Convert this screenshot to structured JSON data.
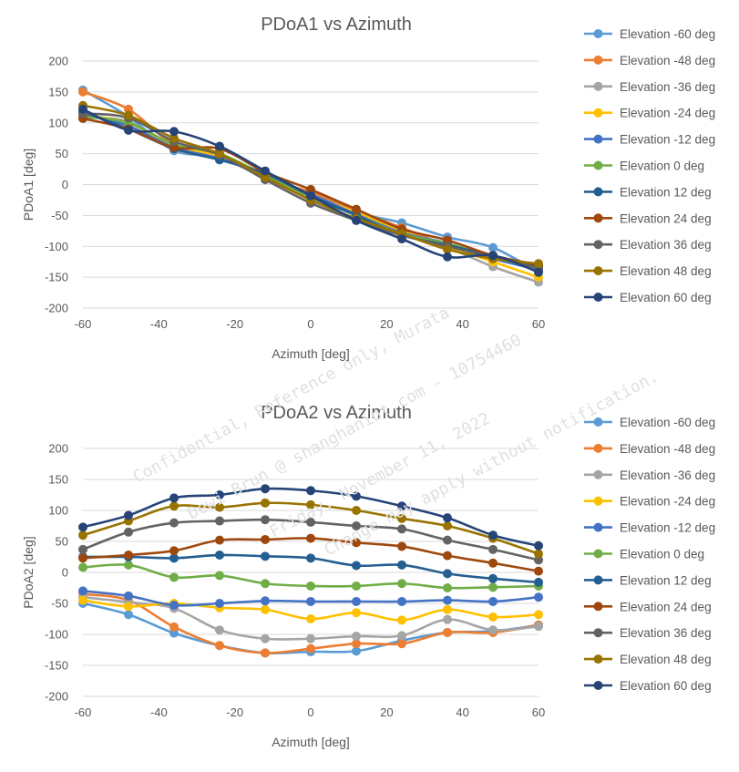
{
  "chart_data": [
    {
      "type": "line",
      "title": "PDoA1 vs Azimuth",
      "xlabel": "Azimuth [deg]",
      "ylabel": "PDoA1 [deg]",
      "xlim": [
        -60,
        60
      ],
      "ylim": [
        -200,
        200
      ],
      "xticks": [
        -60,
        -40,
        -20,
        0,
        20,
        40,
        60
      ],
      "yticks": [
        200,
        150,
        100,
        50,
        0,
        -50,
        -100,
        -150,
        -200
      ],
      "grid": true,
      "legend": "right",
      "x": [
        -60,
        -48,
        -36,
        -24,
        -12,
        0,
        12,
        24,
        36,
        48,
        60
      ],
      "series": [
        {
          "name": "Elevation -60 deg",
          "color": "#5b9bd5",
          "values": [
            153,
            110,
            55,
            45,
            12,
            -15,
            -45,
            -62,
            -85,
            -102,
            -142
          ]
        },
        {
          "name": "Elevation -48 deg",
          "color": "#ed7d31",
          "values": [
            150,
            122,
            65,
            48,
            10,
            -12,
            -42,
            -70,
            -98,
            -115,
            -140
          ]
        },
        {
          "name": "Elevation -36 deg",
          "color": "#a5a5a5",
          "values": [
            108,
            102,
            57,
            44,
            10,
            -22,
            -48,
            -80,
            -102,
            -133,
            -158
          ]
        },
        {
          "name": "Elevation -24 deg",
          "color": "#ffc000",
          "values": [
            112,
            100,
            62,
            46,
            12,
            -18,
            -45,
            -75,
            -100,
            -125,
            -150
          ]
        },
        {
          "name": "Elevation -12 deg",
          "color": "#4472c4",
          "values": [
            115,
            95,
            60,
            42,
            14,
            -16,
            -48,
            -78,
            -95,
            -120,
            -138
          ]
        },
        {
          "name": "Elevation 0 deg",
          "color": "#70ad47",
          "values": [
            110,
            100,
            65,
            50,
            15,
            -20,
            -50,
            -80,
            -95,
            -118,
            -135
          ]
        },
        {
          "name": "Elevation 12 deg",
          "color": "#255e91",
          "values": [
            118,
            90,
            58,
            40,
            18,
            -18,
            -50,
            -82,
            -98,
            -115,
            -132
          ]
        },
        {
          "name": "Elevation 24 deg",
          "color": "#9e480e",
          "values": [
            107,
            90,
            60,
            58,
            20,
            -8,
            -40,
            -72,
            -90,
            -115,
            -130
          ]
        },
        {
          "name": "Elevation 36 deg",
          "color": "#636363",
          "values": [
            115,
            108,
            70,
            48,
            8,
            -30,
            -58,
            -82,
            -100,
            -118,
            -135
          ]
        },
        {
          "name": "Elevation 48 deg",
          "color": "#997300",
          "values": [
            128,
            112,
            75,
            50,
            12,
            -25,
            -55,
            -80,
            -105,
            -120,
            -128
          ]
        },
        {
          "name": "Elevation 60 deg",
          "color": "#264478",
          "values": [
            122,
            88,
            86,
            62,
            22,
            -18,
            -58,
            -88,
            -117,
            -115,
            -142
          ]
        }
      ]
    },
    {
      "type": "line",
      "title": "PDoA2 vs Azimuth",
      "xlabel": "Azimuth [deg]",
      "ylabel": "PDoA2 [deg]",
      "xlim": [
        -60,
        60
      ],
      "ylim": [
        -200,
        200
      ],
      "xticks": [
        -60,
        -40,
        -20,
        0,
        20,
        40,
        60
      ],
      "yticks": [
        200,
        150,
        100,
        50,
        0,
        -50,
        -100,
        -150,
        -200
      ],
      "grid": true,
      "legend": "right",
      "x": [
        -60,
        -48,
        -36,
        -24,
        -12,
        0,
        12,
        24,
        36,
        48,
        60
      ],
      "series": [
        {
          "name": "Elevation -60 deg",
          "color": "#5b9bd5",
          "values": [
            -50,
            -68,
            -98,
            -118,
            -130,
            -128,
            -127,
            -110,
            -97,
            -95,
            -85
          ]
        },
        {
          "name": "Elevation -48 deg",
          "color": "#ed7d31",
          "values": [
            -35,
            -45,
            -88,
            -118,
            -130,
            -123,
            -115,
            -115,
            -97,
            -97,
            -85
          ]
        },
        {
          "name": "Elevation -36 deg",
          "color": "#a5a5a5",
          "values": [
            -40,
            -48,
            -58,
            -93,
            -107,
            -107,
            -103,
            -102,
            -76,
            -93,
            -87
          ]
        },
        {
          "name": "Elevation -24 deg",
          "color": "#ffc000",
          "values": [
            -45,
            -55,
            -50,
            -57,
            -60,
            -75,
            -65,
            -77,
            -60,
            -72,
            -68
          ]
        },
        {
          "name": "Elevation -12 deg",
          "color": "#4472c4",
          "values": [
            -30,
            -38,
            -53,
            -50,
            -46,
            -47,
            -47,
            -47,
            -45,
            -47,
            -40
          ]
        },
        {
          "name": "Elevation 0 deg",
          "color": "#70ad47",
          "values": [
            8,
            12,
            -8,
            -5,
            -18,
            -22,
            -22,
            -18,
            -25,
            -24,
            -22
          ]
        },
        {
          "name": "Elevation 12 deg",
          "color": "#255e91",
          "values": [
            25,
            25,
            23,
            28,
            26,
            23,
            11,
            12,
            -2,
            -10,
            -16
          ]
        },
        {
          "name": "Elevation 24 deg",
          "color": "#9e480e",
          "values": [
            23,
            28,
            35,
            52,
            53,
            55,
            48,
            42,
            27,
            15,
            2
          ]
        },
        {
          "name": "Elevation 36 deg",
          "color": "#636363",
          "values": [
            37,
            65,
            80,
            83,
            85,
            81,
            75,
            70,
            52,
            37,
            20
          ]
        },
        {
          "name": "Elevation 48 deg",
          "color": "#997300",
          "values": [
            60,
            83,
            107,
            105,
            112,
            109,
            100,
            87,
            75,
            55,
            30
          ]
        },
        {
          "name": "Elevation 60 deg",
          "color": "#264478",
          "values": [
            73,
            92,
            120,
            125,
            135,
            132,
            123,
            107,
            88,
            60,
            43
          ]
        }
      ]
    }
  ],
  "watermark_lines": [
    "Confidential, Reference only, Murata",
    "Dewi Brun @ shanghaniot.com - 10754460",
    "Friday, November 11, 2022",
    "Change may apply without notification."
  ]
}
